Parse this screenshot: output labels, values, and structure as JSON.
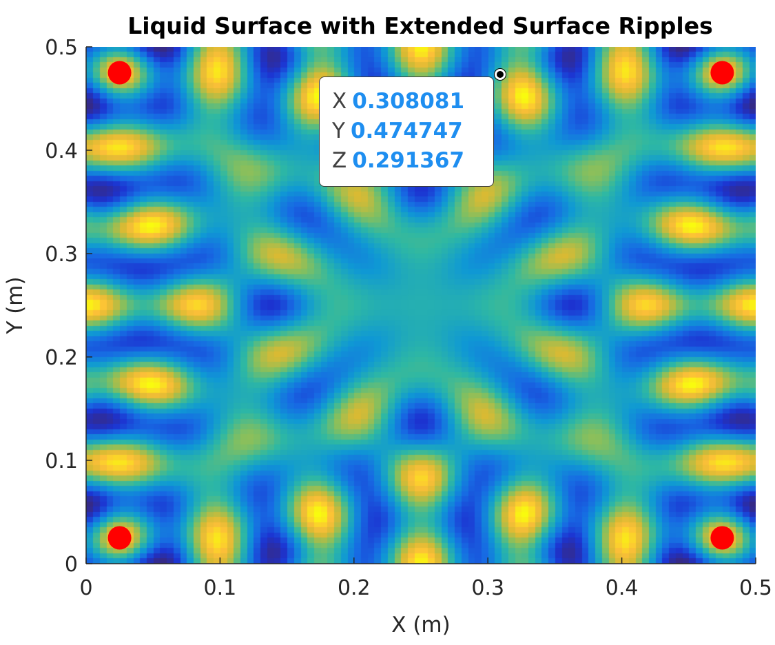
{
  "chart_data": {
    "type": "heatmap",
    "title": "Liquid Surface with Extended Surface Ripples",
    "xlabel": "X (m)",
    "ylabel": "Y (m)",
    "xlim": [
      0,
      0.5
    ],
    "ylim": [
      0,
      0.5
    ],
    "xticks": [
      "0",
      "0.1",
      "0.2",
      "0.3",
      "0.4",
      "0.5"
    ],
    "yticks": [
      "0",
      "0.1",
      "0.2",
      "0.3",
      "0.4",
      "0.5"
    ],
    "colormap": "parula",
    "sources": [
      {
        "x": 0.025,
        "y": 0.025
      },
      {
        "x": 0.475,
        "y": 0.025
      },
      {
        "x": 0.025,
        "y": 0.475
      },
      {
        "x": 0.475,
        "y": 0.475
      }
    ],
    "source_color": "#FF0000",
    "datatip": {
      "x_key": "X",
      "x_value": "0.308081",
      "y_key": "Y",
      "y_value": "0.474747",
      "z_key": "Z",
      "z_value": "0.291367",
      "point": {
        "x": 0.308081,
        "y": 0.474747
      }
    }
  }
}
